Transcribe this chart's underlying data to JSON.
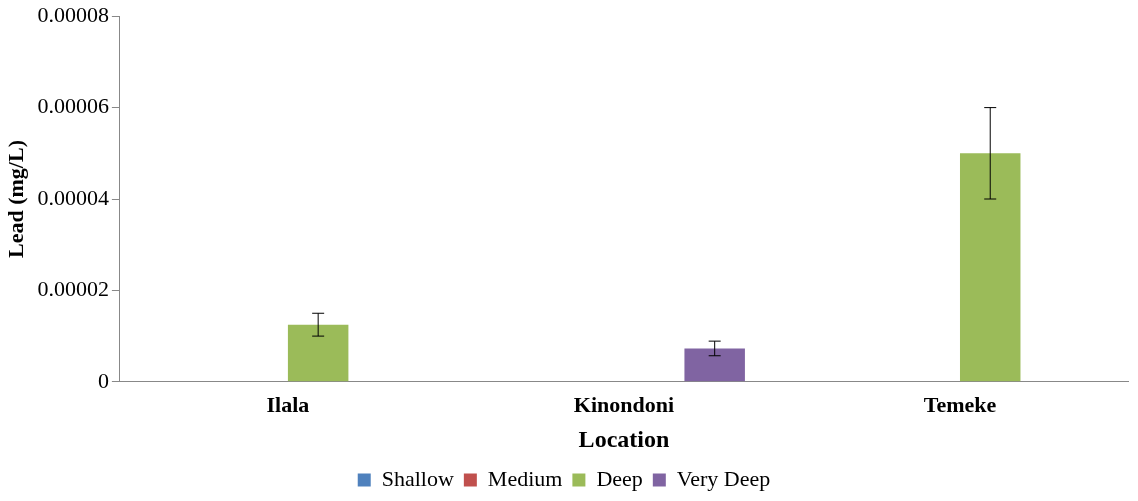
{
  "chart_data": {
    "type": "bar",
    "xlabel": "Location",
    "ylabel": "Lead (mg/L)",
    "categories": [
      "Ilala",
      "Kinondoni",
      "Temeke"
    ],
    "series": [
      {
        "name": "Shallow",
        "color": "#4f81bd",
        "values": [
          null,
          null,
          null
        ]
      },
      {
        "name": "Medium",
        "color": "#c0504d",
        "values": [
          null,
          null,
          null
        ]
      },
      {
        "name": "Deep",
        "color": "#9bbb59",
        "values": [
          1.25e-05,
          null,
          5e-05
        ],
        "errors": [
          2.5e-06,
          null,
          1e-05
        ]
      },
      {
        "name": "Very Deep",
        "color": "#8064a2",
        "values": [
          null,
          7.3e-06,
          null
        ],
        "errors": [
          null,
          1.6e-06,
          null
        ]
      }
    ],
    "ylim": [
      0,
      8e-05
    ],
    "yticks": [
      0,
      {
        "value": 2e-05,
        "label": "0.00002"
      },
      {
        "value": 4e-05,
        "label": "0.00004"
      },
      {
        "value": 6e-05,
        "label": "0.00006"
      },
      {
        "value": 8e-05,
        "label": "0.00008"
      }
    ],
    "grid": false,
    "legend": "bottom"
  }
}
